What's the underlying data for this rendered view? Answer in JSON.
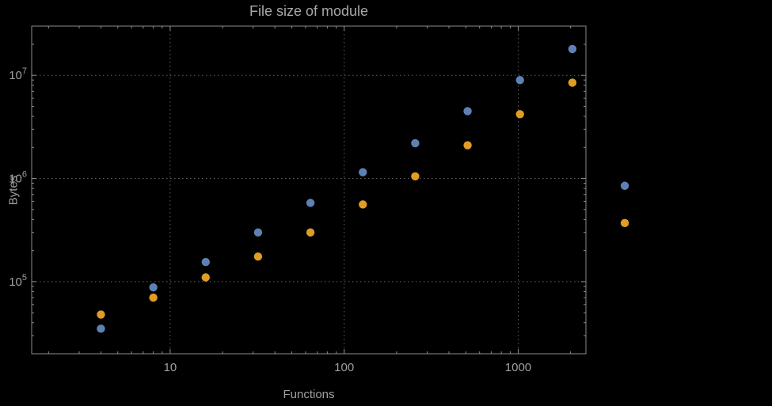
{
  "chart_data": {
    "type": "scatter",
    "title": "File size of module",
    "xlabel": "Functions",
    "ylabel": "Bytes",
    "x_scale": "log",
    "y_scale": "log",
    "xlim": [
      1.6,
      2450
    ],
    "ylim": [
      20000,
      30000000
    ],
    "x_ticks": [
      10,
      100,
      1000
    ],
    "x_tick_labels": [
      "10",
      "100",
      "1000"
    ],
    "y_ticks": [
      100000,
      1000000,
      10000000
    ],
    "y_tick_labels": [
      {
        "base": "10",
        "exp": "5"
      },
      {
        "base": "10",
        "exp": "6"
      },
      {
        "base": "10",
        "exp": "7"
      }
    ],
    "grid": "dotted",
    "legend": "none",
    "x": [
      4,
      8,
      16,
      32,
      64,
      128,
      256,
      512,
      1024,
      2048,
      4096
    ],
    "series": [
      {
        "name": "series-blue",
        "color": "#5e81b5",
        "values": [
          35000,
          88000,
          155000,
          300000,
          580000,
          1150000,
          2200000,
          4500000,
          9000000,
          18000000,
          850000
        ]
      },
      {
        "name": "series-orange",
        "color": "#e19c24",
        "values": [
          48000,
          70000,
          110000,
          175000,
          300000,
          560000,
          1050000,
          2100000,
          4200000,
          8500000,
          370000
        ]
      }
    ]
  },
  "colors": {
    "background": "#000000",
    "frame": "#8c8c8c",
    "grid": "#606060",
    "text": "#a0a0a0"
  }
}
